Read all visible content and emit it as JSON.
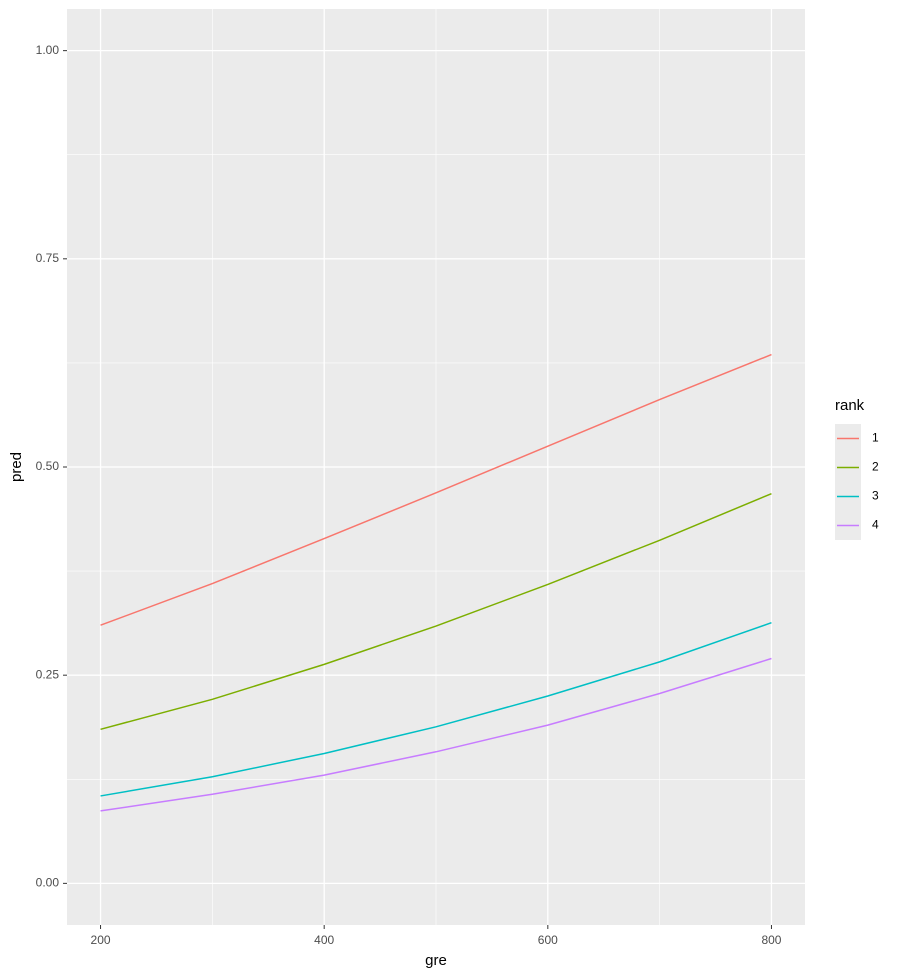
{
  "chart_data": {
    "type": "line",
    "x_label": "gre",
    "y_label": "pred",
    "x": [
      200,
      300,
      400,
      500,
      600,
      700,
      800
    ],
    "series": [
      {
        "name": "1",
        "color": "#F8766D",
        "values": [
          0.31,
          0.36,
          0.414,
          0.469,
          0.525,
          0.581,
          0.635
        ]
      },
      {
        "name": "2",
        "color": "#7CAE00",
        "values": [
          0.185,
          0.221,
          0.263,
          0.309,
          0.359,
          0.412,
          0.468
        ]
      },
      {
        "name": "3",
        "color": "#00BFC4",
        "values": [
          0.105,
          0.128,
          0.156,
          0.188,
          0.225,
          0.266,
          0.313
        ]
      },
      {
        "name": "4",
        "color": "#C77CFF",
        "values": [
          0.087,
          0.107,
          0.13,
          0.158,
          0.19,
          0.228,
          0.27
        ]
      }
    ],
    "legend_title": "rank",
    "legend_position": "right",
    "xlim": [
      170,
      830
    ],
    "ylim": [
      -0.05,
      1.05
    ],
    "xticks": [
      200,
      400,
      600,
      800
    ],
    "yticks": [
      {
        "value": 0,
        "label": "0.00"
      },
      {
        "value": 0.25,
        "label": "0.25"
      },
      {
        "value": 0.5,
        "label": "0.50"
      },
      {
        "value": 0.75,
        "label": "0.75"
      },
      {
        "value": 1,
        "label": "1.00"
      }
    ],
    "xminor": [
      300,
      500,
      700
    ],
    "yminor": [
      0.125,
      0.375,
      0.625,
      0.875
    ],
    "grid": true
  }
}
